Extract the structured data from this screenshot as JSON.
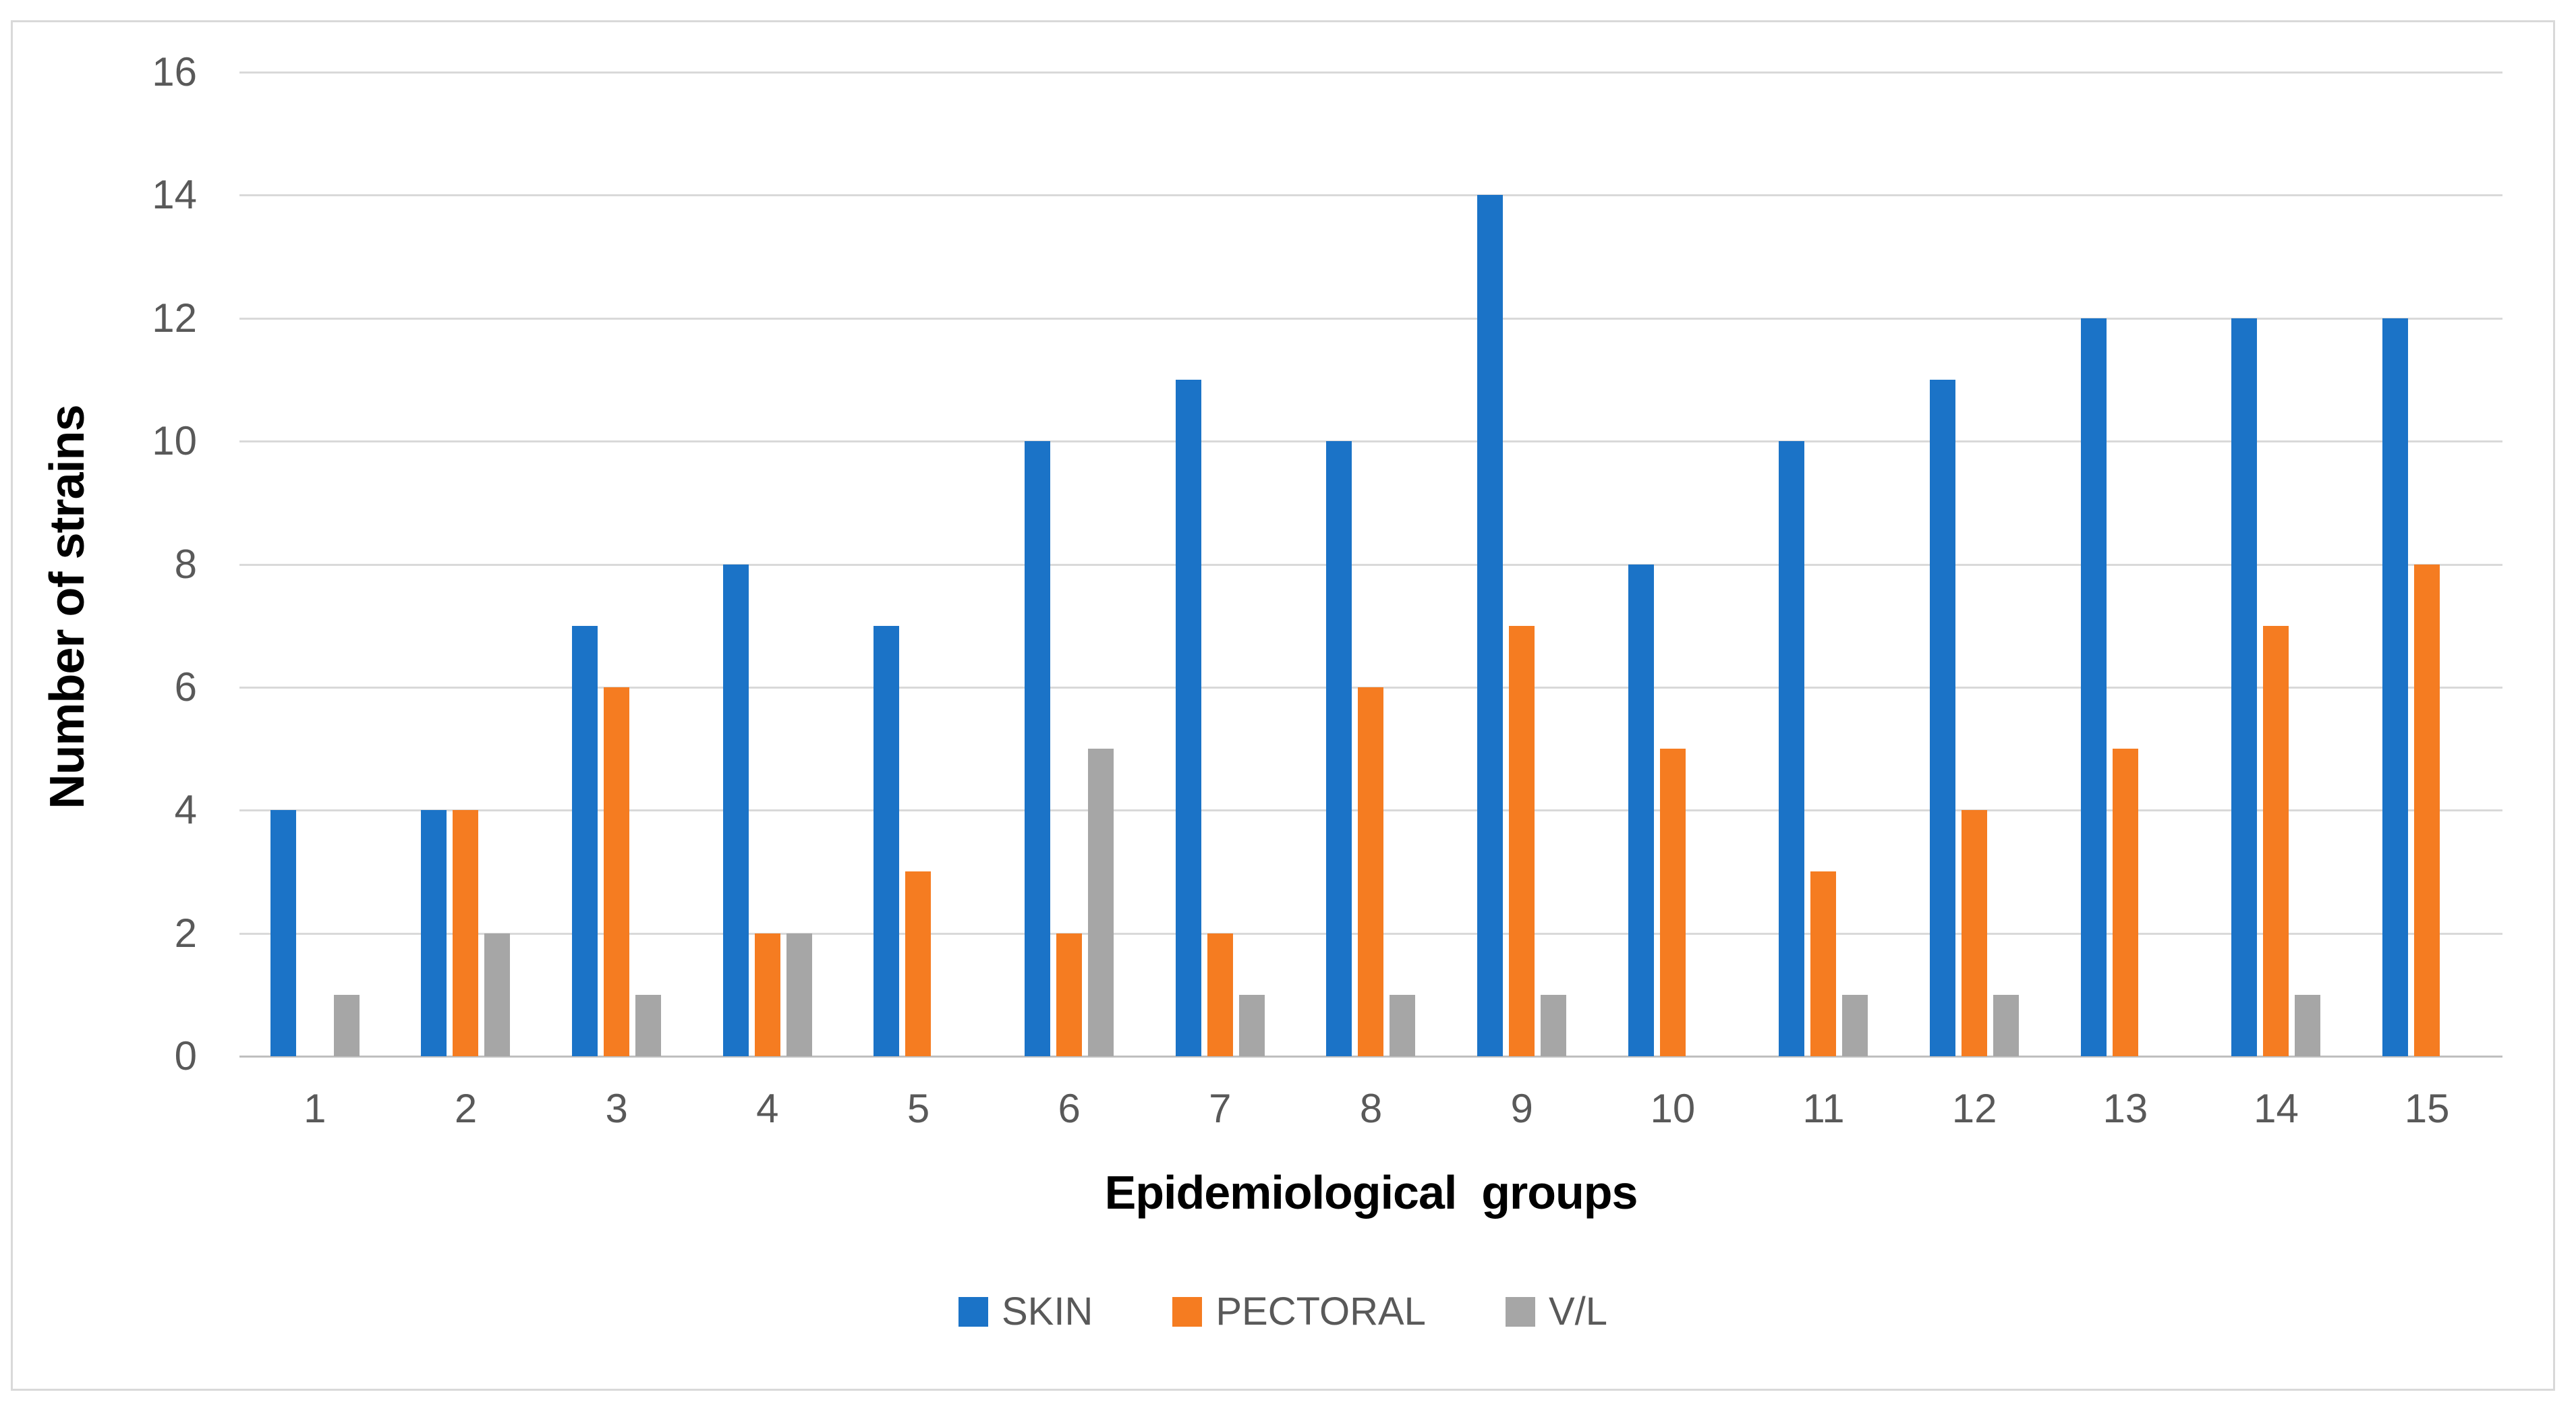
{
  "chart_data": {
    "type": "bar",
    "title": "",
    "xlabel": "Epidemiological  groups",
    "ylabel": "Number of strains",
    "categories": [
      "1",
      "2",
      "3",
      "4",
      "5",
      "6",
      "7",
      "8",
      "9",
      "10",
      "11",
      "12",
      "13",
      "14",
      "15"
    ],
    "series": [
      {
        "name": "SKIN",
        "color": "#1b73c7",
        "values": [
          4,
          4,
          7,
          8,
          7,
          10,
          11,
          10,
          14,
          8,
          10,
          11,
          12,
          12,
          12
        ]
      },
      {
        "name": "PECTORAL",
        "color": "#f57c21",
        "values": [
          0,
          4,
          6,
          2,
          3,
          2,
          2,
          6,
          7,
          5,
          3,
          4,
          5,
          7,
          8
        ]
      },
      {
        "name": "V/L",
        "color": "#a6a6a6",
        "values": [
          1,
          2,
          1,
          2,
          0,
          5,
          1,
          1,
          1,
          0,
          1,
          1,
          0,
          1,
          0
        ]
      }
    ],
    "y_ticks": [
      0,
      2,
      4,
      6,
      8,
      10,
      12,
      14,
      16
    ],
    "ylim": [
      0,
      16
    ],
    "grid": true,
    "legend_position": "bottom",
    "colors": {
      "gridline": "#d9d9d9",
      "axis_line": "#bfbfbf",
      "tick_text": "#595959",
      "title_text": "#000000",
      "frame_border": "#d9d9d9",
      "background": "#ffffff"
    }
  }
}
